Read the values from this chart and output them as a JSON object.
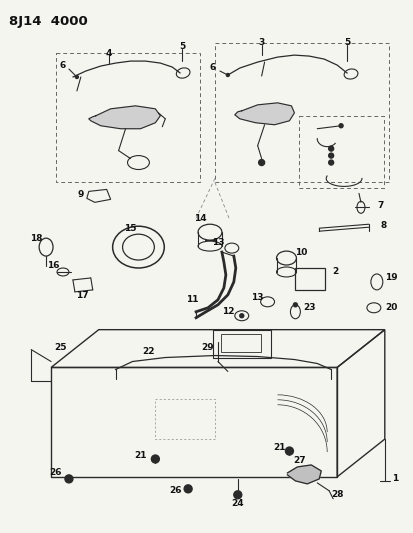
{
  "title": "8J14  4000",
  "bg_color": "#f5f5f0",
  "line_color": "#2a2a2a",
  "label_color": "#111111",
  "fig_width": 4.14,
  "fig_height": 5.33,
  "dpi": 100
}
